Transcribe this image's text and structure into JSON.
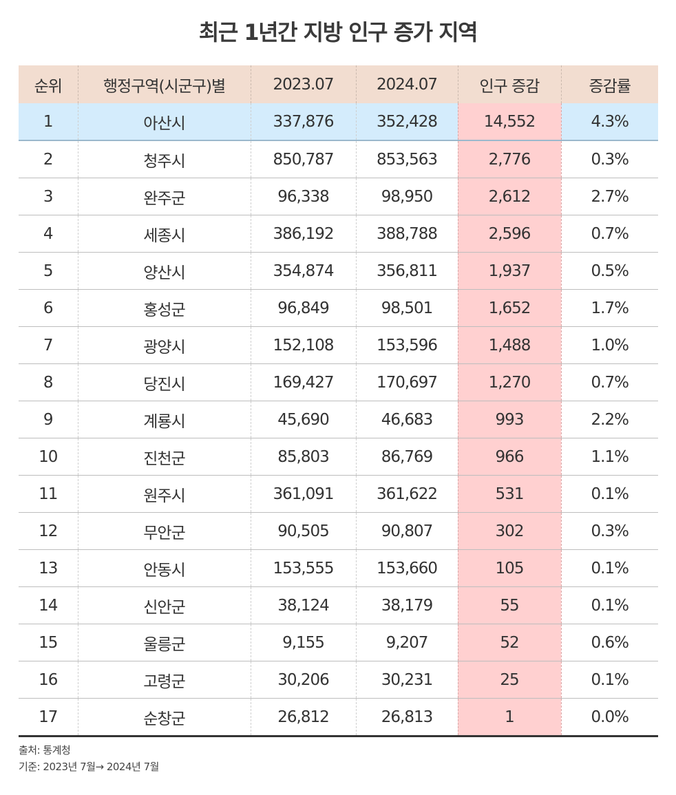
{
  "title": "최근 1년간 지방 인구 증가 지역",
  "table": {
    "headers": [
      "순위",
      "행정구역(시군구)별",
      "2023.07",
      "2024.07",
      "인구 증감",
      "증감률"
    ],
    "rows": [
      {
        "rank": "1",
        "region": "아산시",
        "y2023": "337,876",
        "y2024": "352,428",
        "change": "14,552",
        "rate": "4.3%"
      },
      {
        "rank": "2",
        "region": "청주시",
        "y2023": "850,787",
        "y2024": "853,563",
        "change": "2,776",
        "rate": "0.3%"
      },
      {
        "rank": "3",
        "region": "완주군",
        "y2023": "96,338",
        "y2024": "98,950",
        "change": "2,612",
        "rate": "2.7%"
      },
      {
        "rank": "4",
        "region": "세종시",
        "y2023": "386,192",
        "y2024": "388,788",
        "change": "2,596",
        "rate": "0.7%"
      },
      {
        "rank": "5",
        "region": "양산시",
        "y2023": "354,874",
        "y2024": "356,811",
        "change": "1,937",
        "rate": "0.5%"
      },
      {
        "rank": "6",
        "region": "홍성군",
        "y2023": "96,849",
        "y2024": "98,501",
        "change": "1,652",
        "rate": "1.7%"
      },
      {
        "rank": "7",
        "region": "광양시",
        "y2023": "152,108",
        "y2024": "153,596",
        "change": "1,488",
        "rate": "1.0%"
      },
      {
        "rank": "8",
        "region": "당진시",
        "y2023": "169,427",
        "y2024": "170,697",
        "change": "1,270",
        "rate": "0.7%"
      },
      {
        "rank": "9",
        "region": "계룡시",
        "y2023": "45,690",
        "y2024": "46,683",
        "change": "993",
        "rate": "2.2%"
      },
      {
        "rank": "10",
        "region": "진천군",
        "y2023": "85,803",
        "y2024": "86,769",
        "change": "966",
        "rate": "1.1%"
      },
      {
        "rank": "11",
        "region": "원주시",
        "y2023": "361,091",
        "y2024": "361,622",
        "change": "531",
        "rate": "0.1%"
      },
      {
        "rank": "12",
        "region": "무안군",
        "y2023": "90,505",
        "y2024": "90,807",
        "change": "302",
        "rate": "0.3%"
      },
      {
        "rank": "13",
        "region": "안동시",
        "y2023": "153,555",
        "y2024": "153,660",
        "change": "105",
        "rate": "0.1%"
      },
      {
        "rank": "14",
        "region": "신안군",
        "y2023": "38,124",
        "y2024": "38,179",
        "change": "55",
        "rate": "0.1%"
      },
      {
        "rank": "15",
        "region": "울릉군",
        "y2023": "9,155",
        "y2024": "9,207",
        "change": "52",
        "rate": "0.6%"
      },
      {
        "rank": "16",
        "region": "고령군",
        "y2023": "30,206",
        "y2024": "30,231",
        "change": "25",
        "rate": "0.1%"
      },
      {
        "rank": "17",
        "region": "순창군",
        "y2023": "26,812",
        "y2024": "26,813",
        "change": "1",
        "rate": "0.0%"
      }
    ]
  },
  "footer": {
    "source": "출처: 통계청",
    "basis": "기준: 2023년 7월→ 2024년 7월"
  },
  "colors": {
    "header_bg": "#f2ddd0",
    "highlight_row_bg": "#d4ecfc",
    "change_column_bg": "#ffd0d0"
  }
}
